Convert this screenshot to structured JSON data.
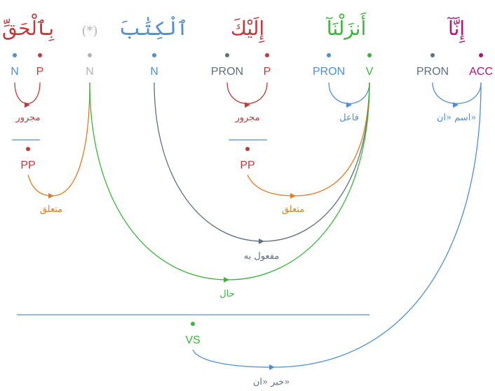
{
  "colors": {
    "noun": "#4f8fd0",
    "prep": "#c0393b",
    "pron": "#5f6f7f",
    "verb": "#3cb43c",
    "acc": "#b0127a",
    "hidden": "#b3b3b3",
    "orange": "#e07b20"
  },
  "words": [
    {
      "text": "إِنَّآ",
      "color": "acc"
    },
    {
      "text": "أَنزَلْنَآ",
      "color": "verb"
    },
    {
      "text": "إِلَيْكَ",
      "color": "prep"
    },
    {
      "text": "ٱلْكِتَٰبَ",
      "color": "noun"
    },
    {
      "text": "(*)",
      "color": "hidden"
    },
    {
      "text": "بِٱلْحَقِّ",
      "color": "prep"
    }
  ],
  "tags": [
    {
      "text": "ACC",
      "color": "acc"
    },
    {
      "text": "PRON",
      "color": "pron"
    },
    {
      "text": "V",
      "color": "verb"
    },
    {
      "text": "PRON",
      "color": "noun"
    },
    {
      "text": "P",
      "color": "prep"
    },
    {
      "text": "PRON",
      "color": "pron"
    },
    {
      "text": "N",
      "color": "noun"
    },
    {
      "text": "N",
      "color": "hidden"
    },
    {
      "text": "P",
      "color": "prep"
    },
    {
      "text": "N",
      "color": "noun"
    }
  ],
  "phrases": [
    {
      "text": "PP",
      "color": "prep"
    },
    {
      "text": "PP",
      "color": "prep"
    },
    {
      "text": "VS",
      "color": "verb"
    }
  ],
  "relations": [
    {
      "text": "اسم «ان»",
      "color": "noun"
    },
    {
      "text": "فاعل",
      "color": "noun"
    },
    {
      "text": "مجرور",
      "color": "prep"
    },
    {
      "text": "مجرور",
      "color": "prep"
    },
    {
      "text": "متعلق",
      "color": "orange"
    },
    {
      "text": "متعلق",
      "color": "orange"
    },
    {
      "text": "مفعول به",
      "color": "pron"
    },
    {
      "text": "حال",
      "color": "verb"
    },
    {
      "text": "خبر «ان»",
      "color": "pron"
    }
  ]
}
